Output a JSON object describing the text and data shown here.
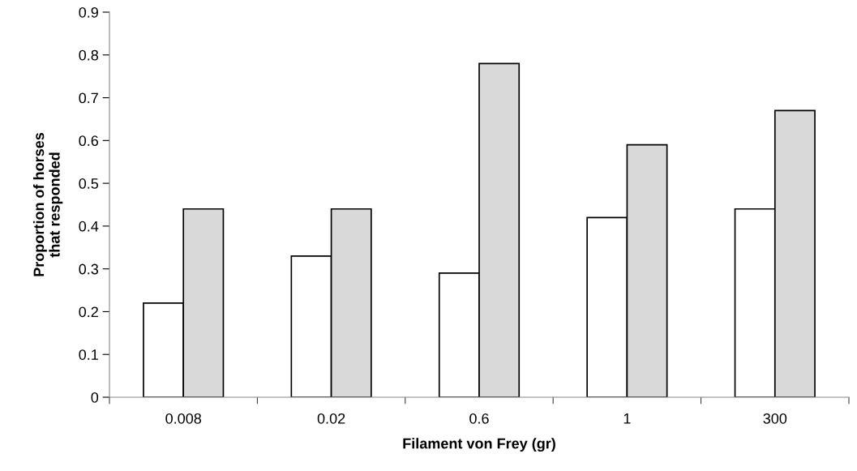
{
  "chart_data": {
    "type": "bar",
    "xlabel": "Filament von Frey (gr)",
    "ylabel": "Proportion of horses\nthat responded",
    "categories": [
      "0.008",
      "0.02",
      "0.6",
      "1",
      "300"
    ],
    "series": [
      {
        "color": "#ffffff",
        "values": [
          0.22,
          0.33,
          0.29,
          0.42,
          0.44
        ]
      },
      {
        "color": "#d9d9d9",
        "values": [
          0.44,
          0.44,
          0.78,
          0.59,
          0.67
        ]
      }
    ],
    "ylim": [
      0,
      0.9
    ],
    "yticks": [
      {
        "value": 0,
        "label": "0"
      },
      0.1,
      0.2,
      0.3,
      0.4,
      0.5,
      0.6,
      0.7,
      0.8,
      0.9
    ],
    "grid": false,
    "legend": false
  }
}
